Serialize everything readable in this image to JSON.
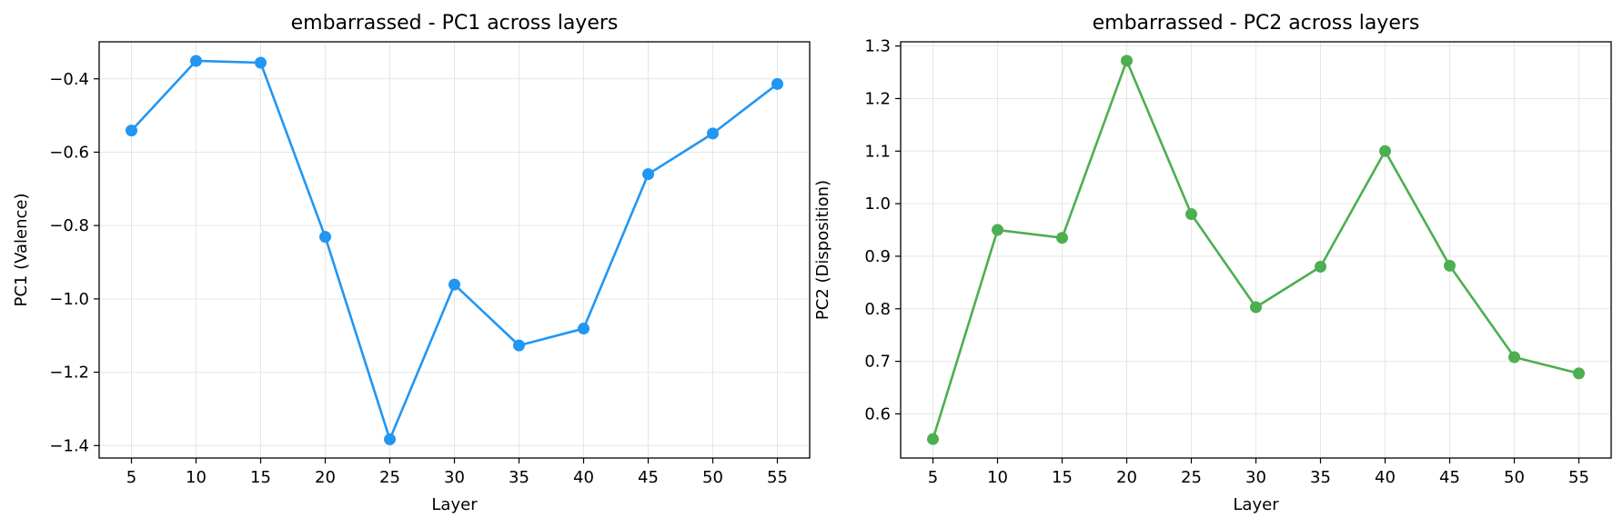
{
  "chart_data": [
    {
      "type": "line",
      "title": "embarrassed - PC1 across layers",
      "xlabel": "Layer",
      "ylabel": "PC1 (Valence)",
      "x": [
        5,
        10,
        15,
        20,
        25,
        30,
        35,
        40,
        45,
        50,
        55
      ],
      "xticks": [
        5,
        10,
        15,
        20,
        25,
        30,
        35,
        40,
        45,
        50,
        55
      ],
      "yticks": [
        -1.4,
        -1.2,
        -1.0,
        -0.8,
        -0.6,
        -0.4
      ],
      "ytick_labels": [
        "−1.4",
        "−1.2",
        "−1.0",
        "−0.8",
        "−0.6",
        "−0.4"
      ],
      "xlim": [
        2.5,
        57.5
      ],
      "ylim": [
        -1.434,
        -0.299
      ],
      "grid": true,
      "series": [
        {
          "values": [
            -0.541,
            -0.351,
            -0.356,
            -0.831,
            -1.383,
            -0.961,
            -1.127,
            -1.081,
            -0.66,
            -0.549,
            -0.414
          ],
          "color": "#2196F3"
        }
      ]
    },
    {
      "type": "line",
      "title": "embarrassed - PC2 across layers",
      "xlabel": "Layer",
      "ylabel": "PC2 (Disposition)",
      "x": [
        5,
        10,
        15,
        20,
        25,
        30,
        35,
        40,
        45,
        50,
        55
      ],
      "xticks": [
        5,
        10,
        15,
        20,
        25,
        30,
        35,
        40,
        45,
        50,
        55
      ],
      "yticks": [
        0.6,
        0.7,
        0.8,
        0.9,
        1.0,
        1.1,
        1.2,
        1.3
      ],
      "ytick_labels": [
        "0.6",
        "0.7",
        "0.8",
        "0.9",
        "1.0",
        "1.1",
        "1.2",
        "1.3"
      ],
      "xlim": [
        2.5,
        57.5
      ],
      "ylim": [
        0.516,
        1.308
      ],
      "grid": true,
      "series": [
        {
          "values": [
            0.552,
            0.95,
            0.935,
            1.272,
            0.98,
            0.803,
            0.88,
            1.1,
            0.882,
            0.708,
            0.677
          ],
          "color": "#4CAF50"
        }
      ]
    }
  ]
}
